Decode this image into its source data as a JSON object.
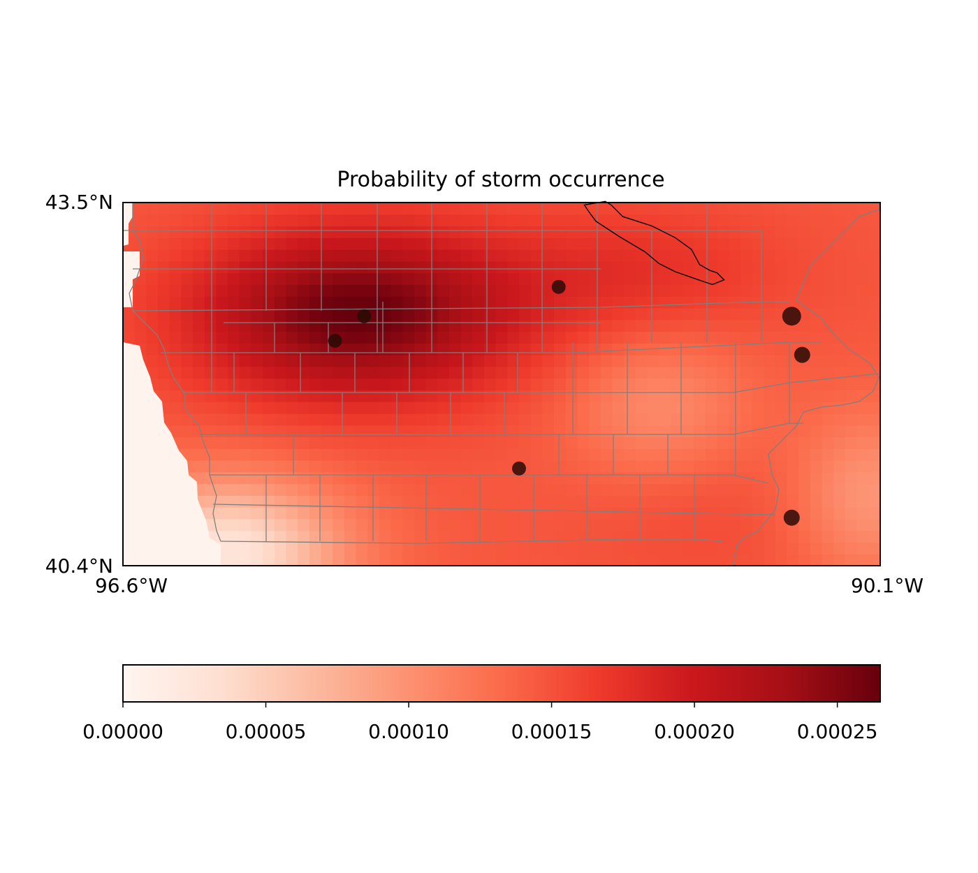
{
  "chart_data": {
    "type": "heatmap",
    "title": "Probability of storm occurrence",
    "extent": {
      "lon": [
        -96.6,
        -90.1
      ],
      "lat": [
        40.4,
        43.5
      ]
    },
    "corner_labels": {
      "lat_top": "43.5°N",
      "lat_bottom": "40.4°N",
      "lon_left": "96.6°W",
      "lon_right": "90.1°W"
    },
    "colormap": "Reds",
    "colorbar": {
      "range": [
        0,
        0.000265
      ],
      "ticks": [
        0,
        5e-05,
        0.0001,
        0.00015,
        0.0002,
        0.00025
      ],
      "tick_labels": [
        "0.00000",
        "0.00005",
        "0.00010",
        "0.00015",
        "0.00020",
        "0.00025"
      ],
      "location": "bottom"
    },
    "field": {
      "background": 0.000145,
      "peaks": [
        {
          "lon": -94.6,
          "lat": 42.55,
          "value": 0.00012,
          "sigma_lon": 0.95,
          "sigma_lat": 0.5
        },
        {
          "lon": -92.2,
          "lat": 42.9,
          "value": 3e-05,
          "sigma_lon": 0.9,
          "sigma_lat": 0.4
        },
        {
          "lon": -91.6,
          "lat": 40.85,
          "value": 1e-05,
          "sigma_lon": 0.8,
          "sigma_lat": 0.5
        }
      ],
      "dips": [
        {
          "lon": -92.0,
          "lat": 41.75,
          "value": 4e-05,
          "sigma_lon": 0.55,
          "sigma_lat": 0.45
        },
        {
          "lon": -90.2,
          "lat": 41.0,
          "value": 5e-05,
          "sigma_lon": 0.45,
          "sigma_lat": 0.5
        },
        {
          "lon": -95.7,
          "lat": 40.5,
          "value": 0.00012,
          "sigma_lon": 0.7,
          "sigma_lat": 0.45
        }
      ]
    },
    "storm_points": [
      {
        "lon": -94.53,
        "lat": 42.53,
        "size": "small"
      },
      {
        "lon": -94.78,
        "lat": 42.32,
        "size": "small"
      },
      {
        "lon": -92.86,
        "lat": 42.78,
        "size": "small"
      },
      {
        "lon": -93.2,
        "lat": 41.23,
        "size": "small"
      },
      {
        "lon": -90.86,
        "lat": 42.53,
        "size": "large"
      },
      {
        "lon": -90.77,
        "lat": 42.2,
        "size": "medium"
      },
      {
        "lon": -90.86,
        "lat": 40.81,
        "size": "medium"
      }
    ],
    "watershed_outline": [
      [
        -92.64,
        43.48
      ],
      [
        -92.46,
        43.51
      ],
      [
        -92.41,
        43.48
      ],
      [
        -92.31,
        43.38
      ],
      [
        -92.06,
        43.3
      ],
      [
        -91.86,
        43.2
      ],
      [
        -91.72,
        43.1
      ],
      [
        -91.65,
        42.97
      ],
      [
        -91.56,
        42.92
      ],
      [
        -91.5,
        42.9
      ],
      [
        -91.44,
        42.84
      ],
      [
        -91.54,
        42.8
      ],
      [
        -91.66,
        42.84
      ],
      [
        -91.86,
        42.91
      ],
      [
        -92.0,
        42.98
      ],
      [
        -92.12,
        43.08
      ],
      [
        -92.34,
        43.21
      ],
      [
        -92.54,
        43.34
      ],
      [
        -92.6,
        43.42
      ]
    ]
  }
}
